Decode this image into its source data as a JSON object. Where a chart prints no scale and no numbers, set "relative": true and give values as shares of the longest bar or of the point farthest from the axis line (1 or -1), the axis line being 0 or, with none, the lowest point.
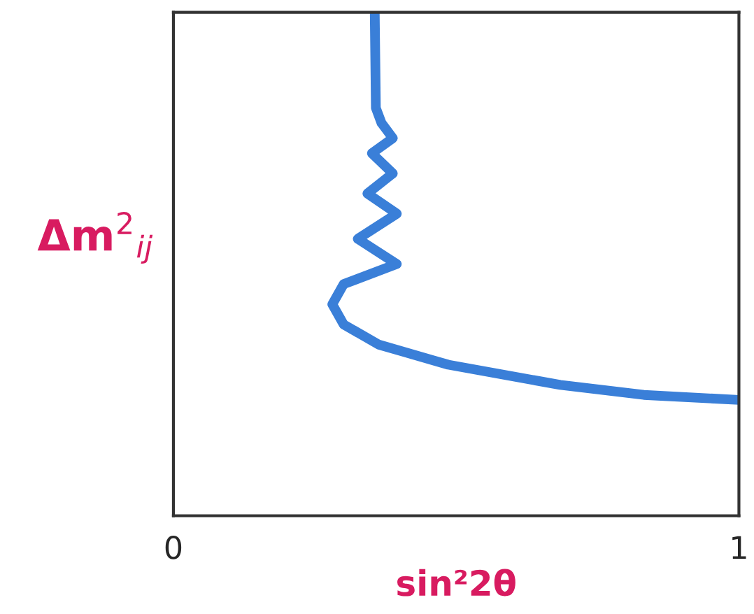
{
  "chart_data": {
    "type": "line",
    "xlabel": "sin²2θ",
    "ylabel": "Δm$^{2}$$_{ij}$",
    "relative": true,
    "xlim": [
      0,
      1
    ],
    "xticks": [
      0,
      1
    ],
    "tick_labels": "x",
    "series": [
      {
        "color": "#3a7fd8",
        "x": [
          0.356,
          0.358,
          0.368,
          0.388,
          0.351,
          0.388,
          0.343,
          0.395,
          0.326,
          0.395,
          0.301,
          0.281,
          0.301,
          0.363,
          0.486,
          0.684,
          0.832,
          1.0
        ],
        "values": [
          1.0,
          0.81,
          0.78,
          0.75,
          0.72,
          0.68,
          0.64,
          0.6,
          0.55,
          0.5,
          0.46,
          0.42,
          0.38,
          0.34,
          0.3,
          0.26,
          0.24,
          0.23
        ]
      }
    ]
  }
}
